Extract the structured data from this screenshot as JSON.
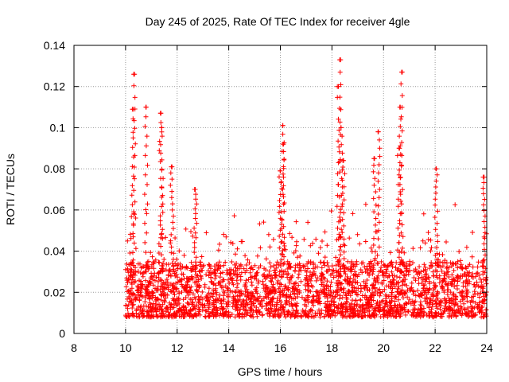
{
  "chart_data": {
    "type": "scatter",
    "title": "Day 245 of 2025, Rate Of TEC Index for receiver 4gle",
    "xlabel": "GPS time / hours",
    "ylabel": "ROTI / TECUs",
    "xlim": [
      8,
      24
    ],
    "ylim": [
      0,
      0.14
    ],
    "xticks": [
      8,
      10,
      12,
      14,
      16,
      18,
      20,
      22,
      24
    ],
    "xtick_labels": [
      "8",
      "10",
      "12",
      "14",
      "16",
      "18",
      "20",
      "22",
      "24"
    ],
    "yticks": [
      0,
      0.02,
      0.04,
      0.06,
      0.08,
      0.1,
      0.12,
      0.14
    ],
    "ytick_labels": [
      "0",
      "0.02",
      "0.04",
      "0.06",
      "0.08",
      "0.1",
      "0.12",
      "0.14"
    ],
    "grid": true,
    "marker": "+",
    "color": "#ff0000",
    "series": [
      {
        "name": "ROTI",
        "time_range_hours": [
          10.0,
          24.0
        ],
        "baseline_band": [
          0.008,
          0.035
        ],
        "peaks": [
          {
            "x": 10.35,
            "y": 0.126
          },
          {
            "x": 10.3,
            "y": 0.109
          },
          {
            "x": 10.8,
            "y": 0.11
          },
          {
            "x": 11.35,
            "y": 0.107
          },
          {
            "x": 11.4,
            "y": 0.1
          },
          {
            "x": 11.8,
            "y": 0.081
          },
          {
            "x": 12.7,
            "y": 0.07
          },
          {
            "x": 16.1,
            "y": 0.101
          },
          {
            "x": 16.1,
            "y": 0.092
          },
          {
            "x": 16.0,
            "y": 0.079
          },
          {
            "x": 18.3,
            "y": 0.133
          },
          {
            "x": 18.25,
            "y": 0.12
          },
          {
            "x": 18.35,
            "y": 0.1
          },
          {
            "x": 18.45,
            "y": 0.084
          },
          {
            "x": 19.8,
            "y": 0.098
          },
          {
            "x": 19.65,
            "y": 0.085
          },
          {
            "x": 20.7,
            "y": 0.127
          },
          {
            "x": 20.65,
            "y": 0.11
          },
          {
            "x": 20.6,
            "y": 0.09
          },
          {
            "x": 22.05,
            "y": 0.08
          },
          {
            "x": 23.9,
            "y": 0.076
          }
        ]
      }
    ]
  }
}
